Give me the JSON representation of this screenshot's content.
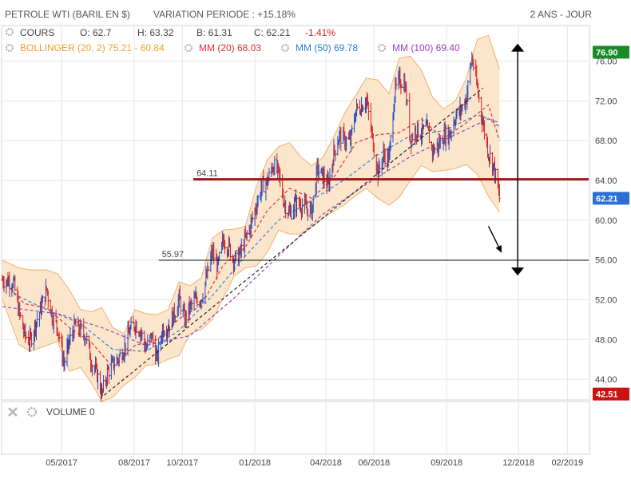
{
  "header": {
    "instrument": "PETROLE WTI (BARIL EN $)",
    "variation": "VARIATION PERIODE : +15.18%",
    "period": "2 ANS - JOUR"
  },
  "legend": {
    "cours": {
      "label": "COURS",
      "o": "O: 62.7",
      "h": "H: 63.32",
      "b": "B: 61.31",
      "c": "C: 62.21",
      "chg": "-1.41%"
    },
    "bollinger": {
      "label": "BOLLINGER (20, 2) 75.21 - 60.84",
      "color": "#f0a030"
    },
    "mm20": {
      "label": "MM (20) 68.03",
      "color": "#e03030"
    },
    "mm50": {
      "label": "MM (50) 69.78",
      "color": "#2a7fd4"
    },
    "mm100": {
      "label": "MM (100) 69.40",
      "color": "#9a3fbf"
    }
  },
  "volume_panel": {
    "label": "VOLUME",
    "value": "0"
  },
  "badges": {
    "high": {
      "value": 76.9,
      "text": "76.90",
      "color": "#1a8a2a"
    },
    "last": {
      "value": 62.21,
      "text": "62.21",
      "color": "#2a6fd6"
    },
    "low": {
      "value": 42.51,
      "text": "42.51",
      "color": "#cc1111"
    }
  },
  "colors": {
    "price_up": "#1f4fc0",
    "price_down": "#d42020",
    "band_fill": "#fbe3c6",
    "band_edge": "#f2b070"
  },
  "chart_data": {
    "type": "line",
    "y_ticks": [
      "44.00",
      "48.00",
      "52.00",
      "56.00",
      "60.00",
      "64.00",
      "68.00",
      "72.00",
      "76.00"
    ],
    "x_ticks": [
      "05/2017",
      "08/2017",
      "10/2017",
      "01/2018",
      "04/2018",
      "06/2018",
      "09/2018",
      "12/2018",
      "02/2019"
    ],
    "ylim": [
      42.0,
      79.5
    ],
    "xlim": [
      "2017-02-15",
      "2019-02-28"
    ],
    "grid": true,
    "legend_position": "top-left",
    "price": [
      [
        "2017-02-15",
        54.0
      ],
      [
        "2017-03-01",
        53.8
      ],
      [
        "2017-03-08",
        50.8
      ],
      [
        "2017-03-15",
        48.5
      ],
      [
        "2017-03-22",
        47.8
      ],
      [
        "2017-03-29",
        49.6
      ],
      [
        "2017-04-05",
        51.2
      ],
      [
        "2017-04-12",
        53.1
      ],
      [
        "2017-04-19",
        50.4
      ],
      [
        "2017-04-26",
        49.2
      ],
      [
        "2017-05-04",
        45.6
      ],
      [
        "2017-05-11",
        47.8
      ],
      [
        "2017-05-18",
        49.4
      ],
      [
        "2017-05-25",
        48.9
      ],
      [
        "2017-06-01",
        48.3
      ],
      [
        "2017-06-08",
        45.7
      ],
      [
        "2017-06-15",
        44.5
      ],
      [
        "2017-06-21",
        42.5
      ],
      [
        "2017-06-28",
        44.7
      ],
      [
        "2017-07-05",
        45.5
      ],
      [
        "2017-07-12",
        46.1
      ],
      [
        "2017-07-19",
        47.1
      ],
      [
        "2017-07-26",
        48.8
      ],
      [
        "2017-08-02",
        49.6
      ],
      [
        "2017-08-09",
        48.9
      ],
      [
        "2017-08-16",
        47.1
      ],
      [
        "2017-08-23",
        48.4
      ],
      [
        "2017-08-30",
        46.0
      ],
      [
        "2017-09-06",
        49.1
      ],
      [
        "2017-09-13",
        49.3
      ],
      [
        "2017-09-20",
        50.4
      ],
      [
        "2017-09-27",
        52.1
      ],
      [
        "2017-10-04",
        50.0
      ],
      [
        "2017-10-11",
        51.3
      ],
      [
        "2017-10-18",
        52.0
      ],
      [
        "2017-10-25",
        52.2
      ],
      [
        "2017-11-01",
        54.3
      ],
      [
        "2017-11-08",
        56.8
      ],
      [
        "2017-11-15",
        55.3
      ],
      [
        "2017-11-22",
        58.0
      ],
      [
        "2017-11-29",
        57.3
      ],
      [
        "2017-12-06",
        56.0
      ],
      [
        "2017-12-13",
        56.6
      ],
      [
        "2017-12-20",
        58.1
      ],
      [
        "2017-12-27",
        59.6
      ],
      [
        "2018-01-03",
        61.6
      ],
      [
        "2018-01-10",
        63.5
      ],
      [
        "2018-01-17",
        63.9
      ],
      [
        "2018-01-24",
        65.6
      ],
      [
        "2018-01-31",
        64.7
      ],
      [
        "2018-02-07",
        61.8
      ],
      [
        "2018-02-14",
        60.6
      ],
      [
        "2018-02-21",
        61.7
      ],
      [
        "2018-02-28",
        61.6
      ],
      [
        "2018-03-07",
        61.2
      ],
      [
        "2018-03-14",
        60.9
      ],
      [
        "2018-03-21",
        65.1
      ],
      [
        "2018-03-28",
        64.4
      ],
      [
        "2018-04-04",
        63.4
      ],
      [
        "2018-04-11",
        66.8
      ],
      [
        "2018-04-18",
        68.5
      ],
      [
        "2018-04-25",
        68.1
      ],
      [
        "2018-05-02",
        67.9
      ],
      [
        "2018-05-09",
        71.1
      ],
      [
        "2018-05-16",
        71.5
      ],
      [
        "2018-05-22",
        72.2
      ],
      [
        "2018-05-30",
        68.2
      ],
      [
        "2018-06-06",
        64.7
      ],
      [
        "2018-06-13",
        66.6
      ],
      [
        "2018-06-20",
        66.2
      ],
      [
        "2018-06-27",
        72.8
      ],
      [
        "2018-07-03",
        74.1
      ],
      [
        "2018-07-10",
        73.8
      ],
      [
        "2018-07-17",
        68.1
      ],
      [
        "2018-07-24",
        69.1
      ],
      [
        "2018-07-31",
        68.8
      ],
      [
        "2018-08-07",
        69.2
      ],
      [
        "2018-08-14",
        67.0
      ],
      [
        "2018-08-21",
        67.4
      ],
      [
        "2018-08-28",
        68.5
      ],
      [
        "2018-09-05",
        68.7
      ],
      [
        "2018-09-12",
        70.4
      ],
      [
        "2018-09-19",
        71.1
      ],
      [
        "2018-09-26",
        72.3
      ],
      [
        "2018-10-03",
        76.4
      ],
      [
        "2018-10-10",
        73.2
      ],
      [
        "2018-10-17",
        69.8
      ],
      [
        "2018-10-24",
        66.8
      ],
      [
        "2018-10-31",
        65.3
      ],
      [
        "2018-11-07",
        62.2
      ]
    ],
    "bollinger_upper": [
      [
        "2017-02-15",
        56.0
      ],
      [
        "2017-03-08",
        55.2
      ],
      [
        "2017-03-22",
        55.0
      ],
      [
        "2017-04-12",
        55.0
      ],
      [
        "2017-04-26",
        54.6
      ],
      [
        "2017-05-11",
        53.0
      ],
      [
        "2017-05-25",
        51.0
      ],
      [
        "2017-06-08",
        50.8
      ],
      [
        "2017-06-21",
        51.2
      ],
      [
        "2017-07-05",
        49.2
      ],
      [
        "2017-07-19",
        48.6
      ],
      [
        "2017-08-02",
        51.0
      ],
      [
        "2017-08-16",
        50.6
      ],
      [
        "2017-08-30",
        50.5
      ],
      [
        "2017-09-13",
        51.0
      ],
      [
        "2017-09-27",
        53.8
      ],
      [
        "2017-10-11",
        53.4
      ],
      [
        "2017-10-25",
        54.2
      ],
      [
        "2017-11-08",
        58.2
      ],
      [
        "2017-11-22",
        59.0
      ],
      [
        "2017-12-06",
        59.1
      ],
      [
        "2017-12-20",
        59.4
      ],
      [
        "2018-01-03",
        63.4
      ],
      [
        "2018-01-17",
        66.1
      ],
      [
        "2018-01-31",
        67.4
      ],
      [
        "2018-02-14",
        67.8
      ],
      [
        "2018-02-28",
        66.4
      ],
      [
        "2018-03-14",
        65.5
      ],
      [
        "2018-03-28",
        66.3
      ],
      [
        "2018-04-11",
        68.4
      ],
      [
        "2018-04-25",
        70.8
      ],
      [
        "2018-05-09",
        72.6
      ],
      [
        "2018-05-22",
        74.3
      ],
      [
        "2018-06-06",
        74.1
      ],
      [
        "2018-06-20",
        72.7
      ],
      [
        "2018-07-03",
        76.3
      ],
      [
        "2018-07-17",
        76.5
      ],
      [
        "2018-07-31",
        75.1
      ],
      [
        "2018-08-14",
        72.4
      ],
      [
        "2018-08-28",
        71.2
      ],
      [
        "2018-09-12",
        72.0
      ],
      [
        "2018-09-26",
        74.3
      ],
      [
        "2018-10-10",
        78.2
      ],
      [
        "2018-10-24",
        78.6
      ],
      [
        "2018-11-07",
        75.2
      ]
    ],
    "bollinger_lower": [
      [
        "2017-02-15",
        52.0
      ],
      [
        "2017-03-08",
        47.5
      ],
      [
        "2017-03-22",
        46.8
      ],
      [
        "2017-04-12",
        47.4
      ],
      [
        "2017-04-26",
        47.8
      ],
      [
        "2017-05-11",
        44.8
      ],
      [
        "2017-05-25",
        45.2
      ],
      [
        "2017-06-08",
        43.6
      ],
      [
        "2017-06-21",
        41.8
      ],
      [
        "2017-07-05",
        42.2
      ],
      [
        "2017-07-19",
        43.4
      ],
      [
        "2017-08-02",
        44.2
      ],
      [
        "2017-08-16",
        45.4
      ],
      [
        "2017-08-30",
        45.5
      ],
      [
        "2017-09-13",
        46.0
      ],
      [
        "2017-09-27",
        46.4
      ],
      [
        "2017-10-11",
        48.6
      ],
      [
        "2017-10-25",
        49.0
      ],
      [
        "2017-11-08",
        50.0
      ],
      [
        "2017-11-22",
        52.2
      ],
      [
        "2017-12-06",
        54.4
      ],
      [
        "2017-12-20",
        55.2
      ],
      [
        "2018-01-03",
        55.4
      ],
      [
        "2018-01-17",
        56.8
      ],
      [
        "2018-01-31",
        59.0
      ],
      [
        "2018-02-14",
        58.6
      ],
      [
        "2018-02-28",
        58.6
      ],
      [
        "2018-03-14",
        59.3
      ],
      [
        "2018-03-28",
        60.2
      ],
      [
        "2018-04-11",
        60.9
      ],
      [
        "2018-04-25",
        61.6
      ],
      [
        "2018-05-09",
        62.5
      ],
      [
        "2018-05-22",
        63.2
      ],
      [
        "2018-06-06",
        62.2
      ],
      [
        "2018-06-20",
        61.5
      ],
      [
        "2018-07-03",
        62.3
      ],
      [
        "2018-07-17",
        64.0
      ],
      [
        "2018-07-31",
        65.5
      ],
      [
        "2018-08-14",
        64.9
      ],
      [
        "2018-08-28",
        65.0
      ],
      [
        "2018-09-12",
        65.2
      ],
      [
        "2018-09-26",
        65.6
      ],
      [
        "2018-10-10",
        64.6
      ],
      [
        "2018-10-24",
        62.4
      ],
      [
        "2018-11-07",
        60.8
      ]
    ],
    "mm20": [
      [
        "2017-02-15",
        54.0
      ],
      [
        "2017-03-15",
        51.6
      ],
      [
        "2017-04-12",
        51.2
      ],
      [
        "2017-05-11",
        49.2
      ],
      [
        "2017-06-08",
        47.7
      ],
      [
        "2017-07-05",
        45.2
      ],
      [
        "2017-08-02",
        47.4
      ],
      [
        "2017-08-30",
        48.0
      ],
      [
        "2017-09-27",
        50.1
      ],
      [
        "2017-10-25",
        51.4
      ],
      [
        "2017-11-22",
        55.5
      ],
      [
        "2017-12-20",
        57.3
      ],
      [
        "2018-01-17",
        61.0
      ],
      [
        "2018-02-14",
        63.2
      ],
      [
        "2018-03-14",
        62.2
      ],
      [
        "2018-04-11",
        64.3
      ],
      [
        "2018-05-09",
        67.8
      ],
      [
        "2018-06-06",
        68.6
      ],
      [
        "2018-07-03",
        68.8
      ],
      [
        "2018-07-31",
        70.2
      ],
      [
        "2018-08-28",
        68.2
      ],
      [
        "2018-09-26",
        69.8
      ],
      [
        "2018-10-24",
        71.6
      ],
      [
        "2018-11-07",
        68.0
      ]
    ],
    "mm50": [
      [
        "2017-03-01",
        52.6
      ],
      [
        "2017-04-12",
        51.0
      ],
      [
        "2017-05-25",
        49.6
      ],
      [
        "2017-07-05",
        47.0
      ],
      [
        "2017-08-16",
        46.8
      ],
      [
        "2017-09-27",
        48.9
      ],
      [
        "2017-11-08",
        52.4
      ],
      [
        "2017-12-20",
        56.4
      ],
      [
        "2018-01-31",
        60.0
      ],
      [
        "2018-03-14",
        62.0
      ],
      [
        "2018-04-25",
        64.1
      ],
      [
        "2018-06-06",
        66.6
      ],
      [
        "2018-07-17",
        68.5
      ],
      [
        "2018-08-28",
        69.0
      ],
      [
        "2018-10-10",
        70.6
      ],
      [
        "2018-11-07",
        69.8
      ]
    ],
    "mm100": [
      [
        "2017-02-15",
        51.3
      ],
      [
        "2017-04-26",
        50.6
      ],
      [
        "2017-06-21",
        49.2
      ],
      [
        "2017-08-16",
        47.4
      ],
      [
        "2017-10-11",
        48.4
      ],
      [
        "2017-12-06",
        52.2
      ],
      [
        "2018-01-31",
        56.4
      ],
      [
        "2018-03-28",
        60.6
      ],
      [
        "2018-05-22",
        63.6
      ],
      [
        "2018-07-17",
        66.4
      ],
      [
        "2018-09-12",
        68.6
      ],
      [
        "2018-10-24",
        70.2
      ],
      [
        "2018-11-07",
        69.4
      ]
    ],
    "annotations": [
      {
        "kind": "horizontal-line",
        "value": 64.11,
        "label": "64.11",
        "from": "2017-10-15",
        "color": "#a01818"
      },
      {
        "kind": "horizontal-line",
        "value": 55.97,
        "label": "55.97",
        "from": "2017-09-01",
        "color": "#111111"
      },
      {
        "kind": "trendline",
        "from": [
          "2017-06-24",
          42.4
        ],
        "to": [
          "2018-10-17",
          73.3
        ]
      },
      {
        "kind": "double-arrow",
        "x": "2018-11-30",
        "from": 77.6,
        "to": 54.6
      },
      {
        "kind": "arrow",
        "from": [
          "2018-10-24",
          59.4
        ],
        "to": [
          "2018-11-08",
          57.0
        ]
      }
    ]
  }
}
